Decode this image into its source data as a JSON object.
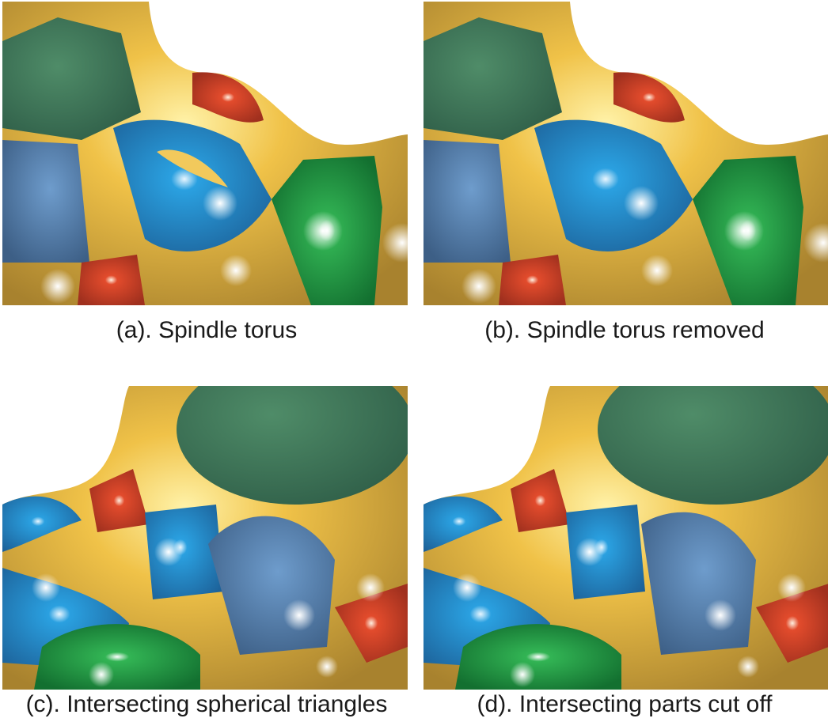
{
  "figure": {
    "panels": [
      {
        "id": "a",
        "caption": "(a). Spindle torus"
      },
      {
        "id": "b",
        "caption": "(b). Spindle torus removed"
      },
      {
        "id": "c",
        "caption": "(c). Intersecting spherical triangles"
      },
      {
        "id": "d",
        "caption": "(d). Intersecting parts cut off"
      }
    ]
  },
  "colors": {
    "yellow": "#e8b640",
    "blue": "#1f8fd0",
    "slate_blue": "#4a78a8",
    "green": "#1e9a45",
    "dark_green": "#3c7a5a",
    "red": "#d8402a",
    "background": "#ffffff"
  }
}
